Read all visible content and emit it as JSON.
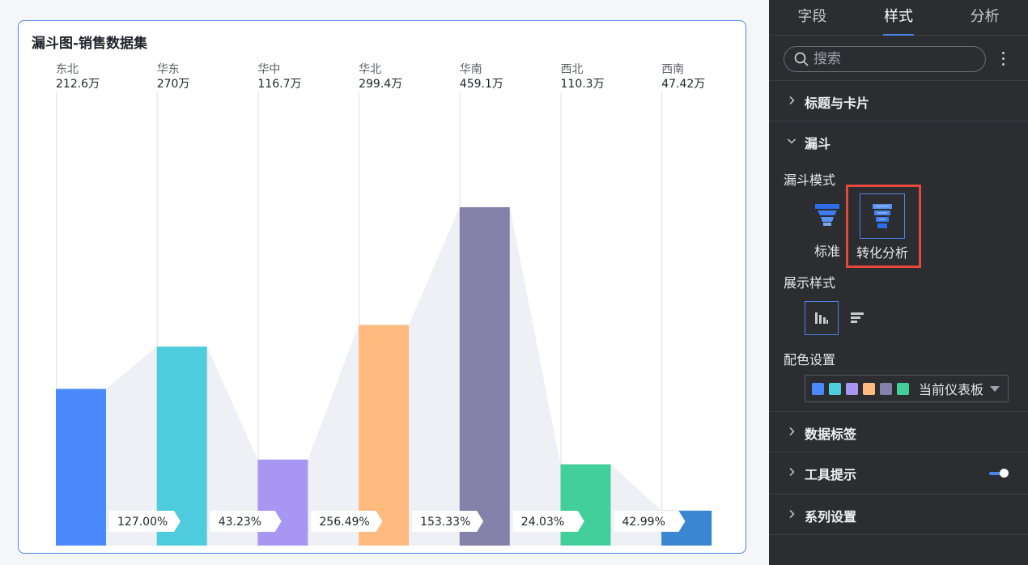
{
  "card": {
    "title": "漏斗图-销售数据集"
  },
  "chart_data": {
    "type": "bar",
    "subtype": "funnel-conversion",
    "categories": [
      "东北",
      "华东",
      "华中",
      "华北",
      "华南",
      "西北",
      "西南"
    ],
    "values": [
      212.6,
      270,
      116.7,
      299.4,
      459.1,
      110.3,
      47.42
    ],
    "value_labels": [
      "212.6万",
      "270万",
      "116.7万",
      "299.4万",
      "459.1万",
      "110.3万",
      "47.42万"
    ],
    "conversion_labels": [
      "127.00%",
      "43.23%",
      "256.49%",
      "153.33%",
      "24.03%",
      "42.99%"
    ],
    "colors": [
      "#4b89ff",
      "#4ecbdc",
      "#a797f2",
      "#ffba80",
      "#8482ab",
      "#42cf9c",
      "#3a86d1"
    ],
    "ylim": [
      0,
      459.1
    ]
  },
  "panel": {
    "tabs": [
      {
        "label": "字段"
      },
      {
        "label": "样式"
      },
      {
        "label": "分析"
      }
    ],
    "active_tab": "样式",
    "search": {
      "placeholder": "搜索"
    },
    "sections": {
      "title_card": "标题与卡片",
      "funnel": "漏斗",
      "data_labels": "数据标签",
      "tooltip": "工具提示",
      "series": "系列设置"
    },
    "funnel_mode": {
      "label": "漏斗模式",
      "options": [
        "标准",
        "转化分析"
      ],
      "selected": "转化分析"
    },
    "display_style": {
      "label": "展示样式"
    },
    "color_setting": {
      "label": "配色设置",
      "value": "当前仪表板",
      "swatches": [
        "#4b89ff",
        "#4ecbdc",
        "#a797f2",
        "#ffba80",
        "#8482ab",
        "#42cf9c"
      ]
    },
    "tooltip_enabled": true
  }
}
